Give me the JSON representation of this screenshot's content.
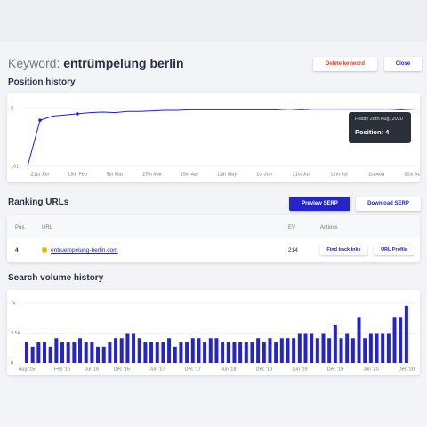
{
  "header": {
    "label": "Keyword:",
    "keyword": "entrümpelung berlin",
    "delete": "Delete keyword",
    "close": "Close"
  },
  "chart_data": [
    {
      "type": "line",
      "title": "Position history",
      "categories": [
        null,
        "21st Jan",
        null,
        null,
        "13th Feb",
        null,
        null,
        "5th Mar",
        null,
        null,
        "27th Mar",
        null,
        null,
        "19th Apr",
        null,
        null,
        "11th May",
        null,
        null,
        "1st Jun",
        null,
        null,
        "21st Jun",
        null,
        null,
        "12th Jul",
        null,
        null,
        "1st Aug",
        null,
        null,
        "31st Aug"
      ],
      "values": [
        101,
        22,
        15,
        13,
        11,
        9,
        8,
        9,
        7,
        7,
        6,
        5,
        5,
        4,
        4,
        4,
        4,
        4,
        4,
        4,
        4,
        3,
        4,
        3,
        3,
        3,
        3,
        3,
        3,
        3,
        4,
        3
      ],
      "color": "#1f22c9",
      "ylim": [
        101,
        2
      ],
      "yticks": [
        2,
        101
      ],
      "grid": true,
      "tooltip": {
        "date": "Friday 28th Aug, 2020",
        "text": "Position: 4"
      }
    },
    {
      "type": "bar",
      "title": "Search volume history",
      "categories": [
        "Aug '15",
        null,
        null,
        null,
        null,
        null,
        "Feb '16",
        null,
        null,
        null,
        null,
        "Jul '16",
        null,
        null,
        null,
        null,
        "Dec '16",
        null,
        null,
        null,
        null,
        null,
        "Jun '17",
        null,
        null,
        null,
        null,
        null,
        "Dec '17",
        null,
        null,
        null,
        null,
        null,
        "Jun '18",
        null,
        null,
        null,
        null,
        null,
        "Dec '18",
        null,
        null,
        null,
        null,
        null,
        "Jun '19",
        null,
        null,
        null,
        null,
        null,
        "Dec '19",
        null,
        null,
        null,
        null,
        null,
        "Jun '20",
        null,
        null,
        null,
        null,
        null,
        "Dec '20"
      ],
      "values": [
        2400,
        1900,
        2400,
        2400,
        1900,
        2900,
        2400,
        2400,
        2400,
        2900,
        2400,
        2400,
        1900,
        1900,
        2400,
        2900,
        2900,
        3500,
        3500,
        2900,
        2400,
        2400,
        2400,
        2400,
        2900,
        1900,
        2400,
        2400,
        2900,
        2900,
        2400,
        2900,
        2900,
        2400,
        2400,
        2400,
        2400,
        2400,
        2400,
        2900,
        2400,
        2900,
        2400,
        2900,
        2900,
        2900,
        3500,
        3500,
        3500,
        2900,
        3500,
        2900,
        4500,
        2900,
        3500,
        2900,
        5400,
        2900,
        3500,
        3500,
        3500,
        3500,
        5400,
        5400,
        6700
      ],
      "color": "#2424c8",
      "ylim": [
        0,
        7000
      ],
      "yticks": [
        {
          "value": 7000,
          "label": "7k"
        },
        {
          "value": 3500,
          "label": "3.5k"
        },
        0
      ],
      "grid": true
    }
  ],
  "ranking": {
    "title": "Ranking URLs",
    "preview": "Preview SERP",
    "download": "Download SERP",
    "table": {
      "columns": [
        "Pos.",
        "URL",
        "EV",
        "Actions"
      ],
      "rows": [
        [
          4,
          "entruempelung-berlin.com",
          214
        ]
      ],
      "actions": [
        "Find backlinks",
        "URL Profile"
      ]
    }
  }
}
